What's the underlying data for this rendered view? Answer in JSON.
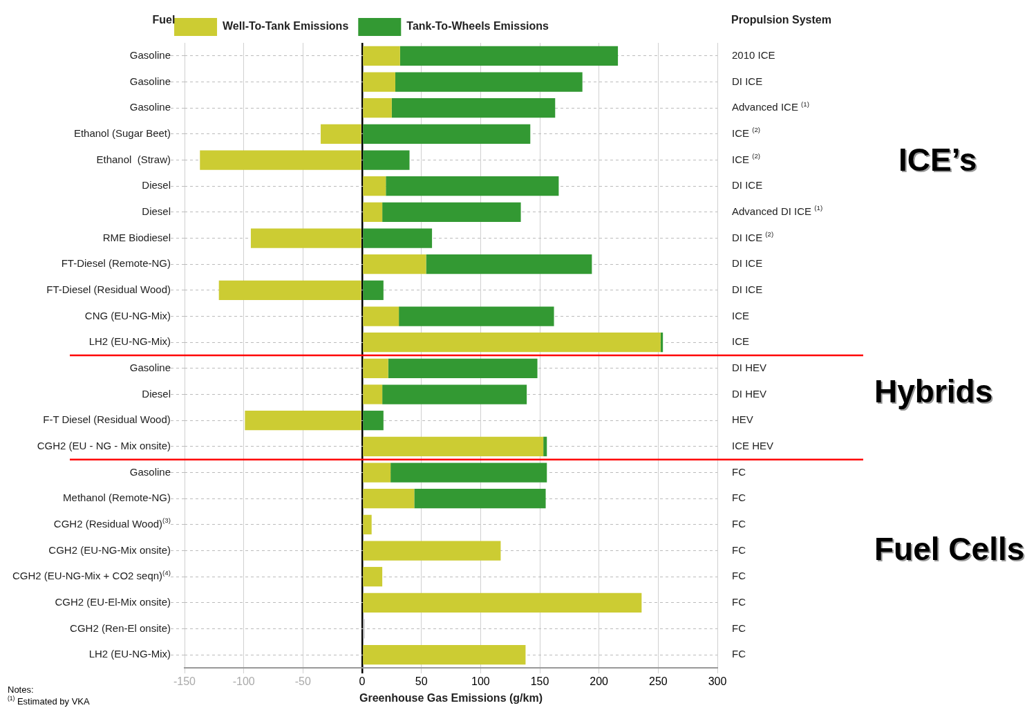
{
  "chart_data": {
    "type": "bar",
    "orientation": "horizontal",
    "stacked": true,
    "ylabel": "Fuel",
    "y2label": "Propulsion System",
    "xlabel": "Greenhouse Gas Emissions (g/km)",
    "categories": [
      "Gasoline",
      "Gasoline",
      "Gasoline",
      "Ethanol (Sugar Beet)",
      "Ethanol  (Straw)",
      "Diesel",
      "Diesel",
      "RME Biodiesel",
      "FT-Diesel (Remote-NG)",
      "FT-Diesel (Residual Wood)",
      "CNG (EU-NG-Mix)",
      "LH2 (EU-NG-Mix)",
      "Gasoline",
      "Diesel",
      "F-T Diesel (Residual Wood)",
      "CGH2 (EU - NG - Mix onsite)",
      "Gasoline",
      "Methanol (Remote-NG)",
      "CGH2 (Residual Wood)$^{(3)}$",
      "CGH2 (EU-NG-Mix onsite)",
      "CGH2 (EU-NG-Mix + CO2 seqn)$^{(4)}$",
      "CGH2 (EU-El-Mix onsite)",
      "CGH2 (Ren-El onsite)",
      "LH2 (EU-NG-Mix)"
    ],
    "y2_categories": [
      "2010 ICE",
      "DI ICE",
      "Advanced ICE $^{(1)}$",
      "ICE $^{(2)}$",
      "ICE $^{(2)}$",
      "DI ICE",
      "Advanced DI ICE $^{(1)}$",
      "DI ICE $^{(2)}$",
      "DI ICE",
      "DI ICE",
      "ICE",
      "ICE",
      "DI HEV",
      "DI HEV",
      "HEV",
      "ICE HEV",
      "FC",
      "FC",
      "FC",
      "FC",
      "FC",
      "FC",
      "FC",
      "FC"
    ],
    "series": [
      {
        "name": "Well-To-Tank Emissions",
        "color": "#cccc33",
        "colors": [
          "#cccc33",
          "#cccc33",
          "#cccc33",
          "#cccc33",
          "#cccc33",
          "#cccc33",
          "#cccc33",
          "#cccc33",
          "#cccc33",
          "#cccc33",
          "#cccc33",
          "#cccc33",
          "#cccc33",
          "#cccc33",
          "#cccc33",
          "#cccc33",
          "#cccc33",
          "#cccc33",
          "#cccc33",
          "#cccc33",
          "#cccc33",
          "#cccc33",
          "#bbbbbb",
          "#cccc33"
        ],
        "values": [
          32,
          28,
          25,
          -35,
          -137,
          20,
          17,
          -94,
          54,
          -121,
          31,
          252,
          22,
          17,
          -99,
          153,
          24,
          44,
          8,
          117,
          17,
          236,
          2,
          138
        ]
      },
      {
        "name": "Tank-To-Wheels Emissions",
        "color": "#339933",
        "values": [
          184,
          158,
          138,
          142,
          40,
          146,
          117,
          59,
          140,
          18,
          131,
          2,
          126,
          122,
          18,
          3,
          132,
          111,
          0,
          0,
          0,
          0,
          0,
          0
        ]
      }
    ],
    "xlim": [
      -150,
      300
    ],
    "xticks": [
      -150,
      -100,
      -50,
      0,
      50,
      100,
      150,
      200,
      250,
      300
    ],
    "grid": true,
    "legend": "top",
    "annotations": [
      "ICE’s",
      "Hybrids",
      "Fuel Cells",
      "Notes:",
      "$^{(1)}$ Estimated by VKA"
    ]
  }
}
